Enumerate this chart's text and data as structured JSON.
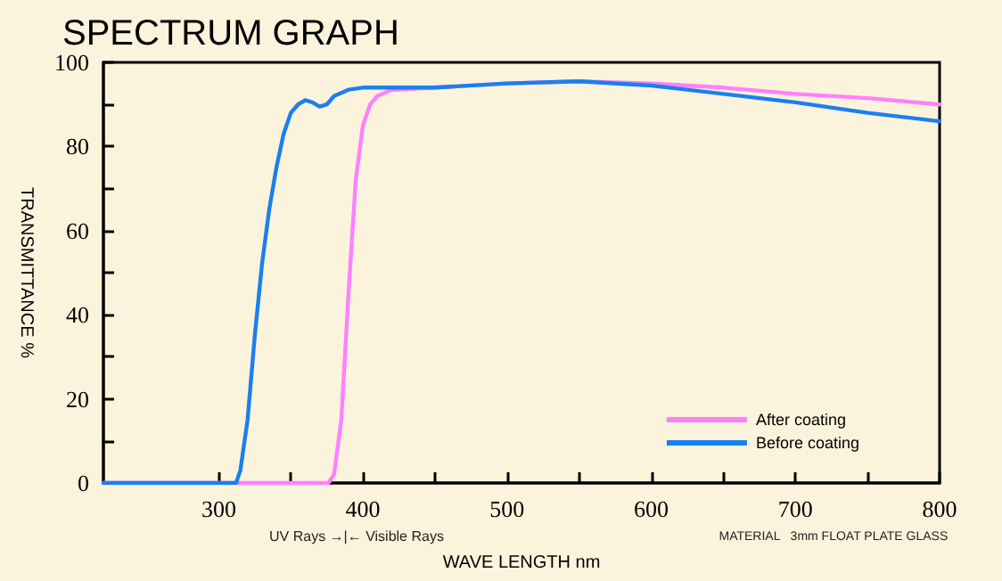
{
  "chart_data": {
    "type": "line",
    "title": "SPECTRUM GRAPH",
    "xlabel": "WAVE LENGTH nm",
    "ylabel": "TRANSMITTANCE %",
    "annotations": [
      "UV Rays →|← Visible Rays",
      "MATERIAL   3mm FLOAT PLATE GLASS"
    ],
    "xlim": [
      220,
      800
    ],
    "xticks": [
      300,
      {
        "value": 350,
        "label": null
      },
      400,
      {
        "value": 450,
        "label": null
      },
      500,
      {
        "value": 550,
        "label": null
      },
      600,
      {
        "value": 650,
        "label": null
      },
      700,
      {
        "value": 750,
        "label": null
      },
      800
    ],
    "ylim": [
      0,
      100
    ],
    "yticks": [
      0,
      {
        "value": 10,
        "label": null
      },
      20,
      {
        "value": 30,
        "label": null
      },
      40,
      {
        "value": 50,
        "label": null
      },
      60,
      {
        "value": 70,
        "label": null
      },
      80,
      {
        "value": 90,
        "label": null
      },
      100
    ],
    "grid": false,
    "legend": "bottom right",
    "marker": "none",
    "line_style": "solid",
    "series": [
      {
        "name": "After coating",
        "color": "#ff80ff",
        "x": [
          220,
          300,
          376,
          380,
          385,
          390,
          395,
          400,
          405,
          410,
          420,
          450,
          500,
          550,
          600,
          650,
          700,
          750,
          800
        ],
        "values": [
          0,
          0,
          0,
          2,
          15,
          45,
          72,
          85,
          90,
          92,
          93.5,
          94,
          95,
          95.5,
          95,
          94,
          92.5,
          91.5,
          90
        ]
      },
      {
        "name": "Before coating",
        "color": "#1a7ff0",
        "x": [
          220,
          300,
          312,
          315,
          320,
          325,
          330,
          335,
          340,
          345,
          350,
          355,
          360,
          365,
          370,
          375,
          380,
          390,
          400,
          450,
          500,
          550,
          600,
          650,
          700,
          750,
          800
        ],
        "values": [
          0,
          0,
          0,
          3,
          15,
          35,
          52,
          65,
          75,
          83,
          88,
          90,
          91,
          90.5,
          89.5,
          90,
          92,
          93.5,
          94,
          94,
          95,
          95.5,
          94.5,
          92.5,
          90.5,
          88,
          86
        ]
      }
    ]
  }
}
